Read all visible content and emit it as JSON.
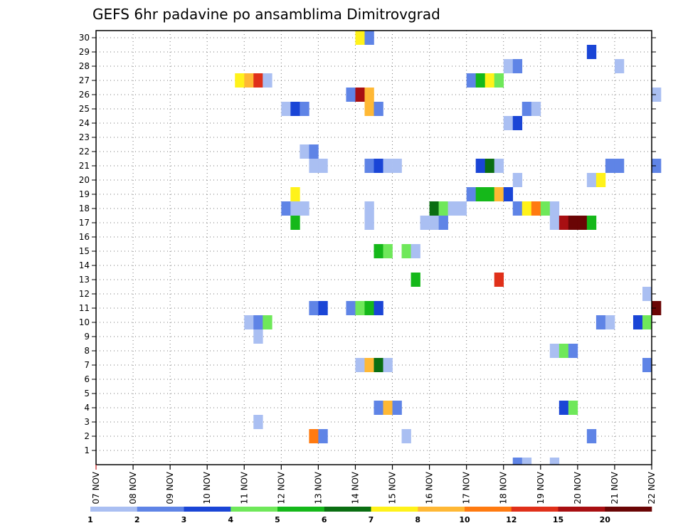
{
  "chart_data": {
    "type": "heatmap",
    "title": "GEFS 6hr padavine po ansamblima Dimitrovgrad",
    "x_tick_labels": [
      "07 NOV",
      "08 NOV",
      "09 NOV",
      "10 NOV",
      "11 NOV",
      "12 NOV",
      "13 NOV",
      "14 NOV",
      "15 NOV",
      "16 NOV",
      "17 NOV",
      "18 NOV",
      "19 NOV",
      "20 NOV",
      "21 NOV",
      "22 NOV"
    ],
    "y_tick_labels": [
      "1",
      "2",
      "3",
      "4",
      "5",
      "6",
      "7",
      "8",
      "9",
      "10",
      "11",
      "12",
      "13",
      "14",
      "15",
      "16",
      "17",
      "18",
      "19",
      "20",
      "21",
      "22",
      "23",
      "24",
      "25",
      "26",
      "27",
      "28",
      "29",
      "30"
    ],
    "y_range": [
      0,
      30
    ],
    "grid": "dotted",
    "colorbar": {
      "labels": [
        "1",
        "2",
        "3",
        "4",
        "5",
        "6",
        "7",
        "8",
        "10",
        "12",
        "15",
        "20"
      ],
      "colors": [
        "#aabff2",
        "#5f84e6",
        "#1a45d6",
        "#6fe85a",
        "#15b81a",
        "#0a6e12",
        "#fff21a",
        "#ffb835",
        "#ff7a10",
        "#e0301a",
        "#a80f12",
        "#6a0505"
      ]
    },
    "cells": [
      [
        28,
        30,
        7
      ],
      [
        29,
        30,
        2
      ],
      [
        53,
        29,
        3
      ],
      [
        44,
        28,
        1
      ],
      [
        45,
        28,
        2
      ],
      [
        56,
        28,
        1
      ],
      [
        15,
        27,
        7
      ],
      [
        16,
        27,
        8
      ],
      [
        17,
        27,
        10
      ],
      [
        18,
        27,
        1
      ],
      [
        40,
        27,
        2
      ],
      [
        41,
        27,
        5
      ],
      [
        42,
        27,
        7
      ],
      [
        43,
        27,
        4
      ],
      [
        27,
        26,
        2
      ],
      [
        28,
        26,
        11
      ],
      [
        29,
        26,
        8
      ],
      [
        60,
        26,
        1
      ],
      [
        20,
        25,
        1
      ],
      [
        21,
        25,
        3
      ],
      [
        22,
        25,
        2
      ],
      [
        29,
        25,
        8
      ],
      [
        30,
        25,
        2
      ],
      [
        46,
        25,
        2
      ],
      [
        47,
        25,
        1
      ],
      [
        44,
        24,
        1
      ],
      [
        45,
        24,
        3
      ],
      [
        22,
        22,
        1
      ],
      [
        23,
        22,
        2
      ],
      [
        23,
        21,
        1
      ],
      [
        24,
        21,
        1
      ],
      [
        29,
        21,
        2
      ],
      [
        30,
        21,
        3
      ],
      [
        31,
        21,
        1
      ],
      [
        32,
        21,
        1
      ],
      [
        41,
        21,
        3
      ],
      [
        42,
        21,
        6
      ],
      [
        43,
        21,
        1
      ],
      [
        55,
        21,
        2
      ],
      [
        56,
        21,
        2
      ],
      [
        60,
        21,
        2
      ],
      [
        45,
        20,
        1
      ],
      [
        53,
        20,
        1
      ],
      [
        54,
        20,
        7
      ],
      [
        21,
        19,
        7
      ],
      [
        40,
        19,
        2
      ],
      [
        41,
        19,
        5
      ],
      [
        42,
        19,
        5
      ],
      [
        43,
        19,
        8
      ],
      [
        44,
        19,
        3
      ],
      [
        20,
        18,
        2
      ],
      [
        21,
        18,
        1
      ],
      [
        22,
        18,
        1
      ],
      [
        29,
        18,
        1
      ],
      [
        36,
        18,
        6
      ],
      [
        37,
        18,
        4
      ],
      [
        38,
        18,
        1
      ],
      [
        39,
        18,
        1
      ],
      [
        45,
        18,
        2
      ],
      [
        46,
        18,
        7
      ],
      [
        47,
        18,
        9
      ],
      [
        48,
        18,
        4
      ],
      [
        49,
        18,
        1
      ],
      [
        21,
        17,
        5
      ],
      [
        29,
        17,
        1
      ],
      [
        35,
        17,
        1
      ],
      [
        36,
        17,
        1
      ],
      [
        37,
        17,
        2
      ],
      [
        49,
        17,
        1
      ],
      [
        50,
        17,
        11
      ],
      [
        51,
        17,
        12
      ],
      [
        52,
        17,
        12
      ],
      [
        53,
        17,
        5
      ],
      [
        30,
        15,
        5
      ],
      [
        31,
        15,
        4
      ],
      [
        33,
        15,
        4
      ],
      [
        34,
        15,
        1
      ],
      [
        34,
        13,
        5
      ],
      [
        43,
        13,
        10
      ],
      [
        59,
        12,
        1
      ],
      [
        23,
        11,
        2
      ],
      [
        24,
        11,
        3
      ],
      [
        27,
        11,
        2
      ],
      [
        28,
        11,
        4
      ],
      [
        29,
        11,
        5
      ],
      [
        30,
        11,
        3
      ],
      [
        60,
        11,
        12
      ],
      [
        16,
        10,
        1
      ],
      [
        17,
        10,
        2
      ],
      [
        18,
        10,
        4
      ],
      [
        54,
        10,
        2
      ],
      [
        55,
        10,
        1
      ],
      [
        58,
        10,
        3
      ],
      [
        59,
        10,
        4
      ],
      [
        17,
        9,
        1
      ],
      [
        49,
        8,
        1
      ],
      [
        50,
        8,
        4
      ],
      [
        51,
        8,
        2
      ],
      [
        28,
        7,
        1
      ],
      [
        29,
        7,
        8
      ],
      [
        30,
        7,
        6
      ],
      [
        31,
        7,
        1
      ],
      [
        59,
        7,
        2
      ],
      [
        30,
        4,
        2
      ],
      [
        31,
        4,
        8
      ],
      [
        32,
        4,
        2
      ],
      [
        50,
        4,
        3
      ],
      [
        51,
        4,
        4
      ],
      [
        17,
        3,
        1
      ],
      [
        23,
        2,
        9
      ],
      [
        24,
        2,
        2
      ],
      [
        33,
        2,
        1
      ],
      [
        53,
        2,
        2
      ],
      [
        45,
        0,
        2
      ],
      [
        46,
        0,
        1
      ],
      [
        49,
        0,
        1
      ]
    ]
  }
}
